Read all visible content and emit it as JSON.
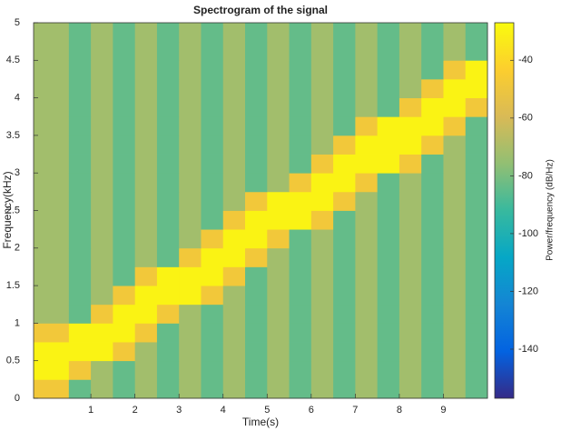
{
  "chart_data": {
    "type": "heatmap",
    "title": "Spectrogram of the signal",
    "xlabel": "Time(s)",
    "ylabel": "Frequency(kHz)",
    "colorbar_label": "Power/frequency (dB/Hz)",
    "colormap": "parula",
    "x": [
      0.25,
      0.75,
      1.25,
      1.75,
      2.25,
      2.75,
      3.25,
      3.75,
      4.25,
      4.75,
      5.25,
      5.75,
      6.25,
      6.75,
      7.25,
      7.75,
      8.25,
      8.75,
      9.25,
      9.75
    ],
    "y": [
      0.125,
      0.375,
      0.625,
      0.875,
      1.125,
      1.375,
      1.625,
      1.875,
      2.125,
      2.375,
      2.625,
      2.875,
      3.125,
      3.375,
      3.625,
      3.875,
      4.125,
      4.375,
      4.625,
      4.875
    ],
    "values": [
      [
        -48,
        -84,
        -72,
        -84,
        -72,
        -84,
        -72,
        -84,
        -72,
        -84,
        -72,
        -84,
        -72,
        -84,
        -72,
        -84,
        -72,
        -84,
        -72,
        -84
      ],
      [
        -30,
        -48,
        -72,
        -84,
        -72,
        -84,
        -72,
        -84,
        -72,
        -84,
        -72,
        -84,
        -72,
        -84,
        -72,
        -84,
        -72,
        -84,
        -72,
        -84
      ],
      [
        -30,
        -30,
        -30,
        -48,
        -72,
        -84,
        -72,
        -84,
        -72,
        -84,
        -72,
        -84,
        -72,
        -84,
        -72,
        -84,
        -72,
        -84,
        -72,
        -84
      ],
      [
        -48,
        -30,
        -30,
        -30,
        -48,
        -84,
        -72,
        -84,
        -72,
        -84,
        -72,
        -84,
        -72,
        -84,
        -72,
        -84,
        -72,
        -84,
        -72,
        -84
      ],
      [
        -72,
        -84,
        -48,
        -30,
        -30,
        -48,
        -72,
        -84,
        -72,
        -84,
        -72,
        -84,
        -72,
        -84,
        -72,
        -84,
        -72,
        -84,
        -72,
        -84
      ],
      [
        -72,
        -84,
        -72,
        -48,
        -30,
        -30,
        -30,
        -48,
        -72,
        -84,
        -72,
        -84,
        -72,
        -84,
        -72,
        -84,
        -72,
        -84,
        -72,
        -84
      ],
      [
        -72,
        -84,
        -72,
        -84,
        -48,
        -30,
        -30,
        -30,
        -48,
        -84,
        -72,
        -84,
        -72,
        -84,
        -72,
        -84,
        -72,
        -84,
        -72,
        -84
      ],
      [
        -72,
        -84,
        -72,
        -84,
        -72,
        -84,
        -48,
        -30,
        -30,
        -48,
        -72,
        -84,
        -72,
        -84,
        -72,
        -84,
        -72,
        -84,
        -72,
        -84
      ],
      [
        -72,
        -84,
        -72,
        -84,
        -72,
        -84,
        -72,
        -48,
        -30,
        -30,
        -48,
        -84,
        -72,
        -84,
        -72,
        -84,
        -72,
        -84,
        -72,
        -84
      ],
      [
        -72,
        -84,
        -72,
        -84,
        -72,
        -84,
        -72,
        -84,
        -48,
        -30,
        -30,
        -30,
        -48,
        -84,
        -72,
        -84,
        -72,
        -84,
        -72,
        -84
      ],
      [
        -72,
        -84,
        -72,
        -84,
        -72,
        -84,
        -72,
        -84,
        -72,
        -48,
        -30,
        -30,
        -30,
        -48,
        -72,
        -84,
        -72,
        -84,
        -72,
        -84
      ],
      [
        -72,
        -84,
        -72,
        -84,
        -72,
        -84,
        -72,
        -84,
        -72,
        -84,
        -72,
        -48,
        -30,
        -30,
        -48,
        -84,
        -72,
        -84,
        -72,
        -84
      ],
      [
        -72,
        -84,
        -72,
        -84,
        -72,
        -84,
        -72,
        -84,
        -72,
        -84,
        -72,
        -84,
        -48,
        -30,
        -30,
        -30,
        -48,
        -84,
        -72,
        -84
      ],
      [
        -72,
        -84,
        -72,
        -84,
        -72,
        -84,
        -72,
        -84,
        -72,
        -84,
        -72,
        -84,
        -72,
        -48,
        -30,
        -30,
        -30,
        -48,
        -72,
        -84
      ],
      [
        -72,
        -84,
        -72,
        -84,
        -72,
        -84,
        -72,
        -84,
        -72,
        -84,
        -72,
        -84,
        -72,
        -84,
        -48,
        -30,
        -30,
        -30,
        -48,
        -84
      ],
      [
        -72,
        -84,
        -72,
        -84,
        -72,
        -84,
        -72,
        -84,
        -72,
        -84,
        -72,
        -84,
        -72,
        -84,
        -72,
        -84,
        -48,
        -30,
        -30,
        -48
      ],
      [
        -72,
        -84,
        -72,
        -84,
        -72,
        -84,
        -72,
        -84,
        -72,
        -84,
        -72,
        -84,
        -72,
        -84,
        -72,
        -84,
        -72,
        -48,
        -30,
        -30
      ],
      [
        -72,
        -84,
        -72,
        -84,
        -72,
        -84,
        -72,
        -84,
        -72,
        -84,
        -72,
        -84,
        -72,
        -84,
        -72,
        -84,
        -72,
        -84,
        -48,
        -30
      ],
      [
        -72,
        -84,
        -72,
        -84,
        -72,
        -84,
        -72,
        -84,
        -72,
        -84,
        -72,
        -84,
        -72,
        -84,
        -72,
        -84,
        -72,
        -84,
        -72,
        -84
      ],
      [
        -72,
        -84,
        -72,
        -84,
        -72,
        -84,
        -72,
        -84,
        -72,
        -84,
        -72,
        -84,
        -72,
        -84,
        -72,
        -84,
        -72,
        -84,
        -72,
        -84
      ]
    ],
    "xlim": [
      -0.3,
      10
    ],
    "ylim": [
      0,
      5
    ],
    "xticks": [
      1,
      2,
      3,
      4,
      5,
      6,
      7,
      8,
      9
    ],
    "yticks": [
      0,
      0.5,
      1,
      1.5,
      2,
      2.5,
      3,
      3.5,
      4,
      4.5,
      5
    ],
    "clim": [
      -157,
      -27
    ],
    "cticks": [
      -140,
      -120,
      -100,
      -80,
      -60,
      -40
    ]
  }
}
